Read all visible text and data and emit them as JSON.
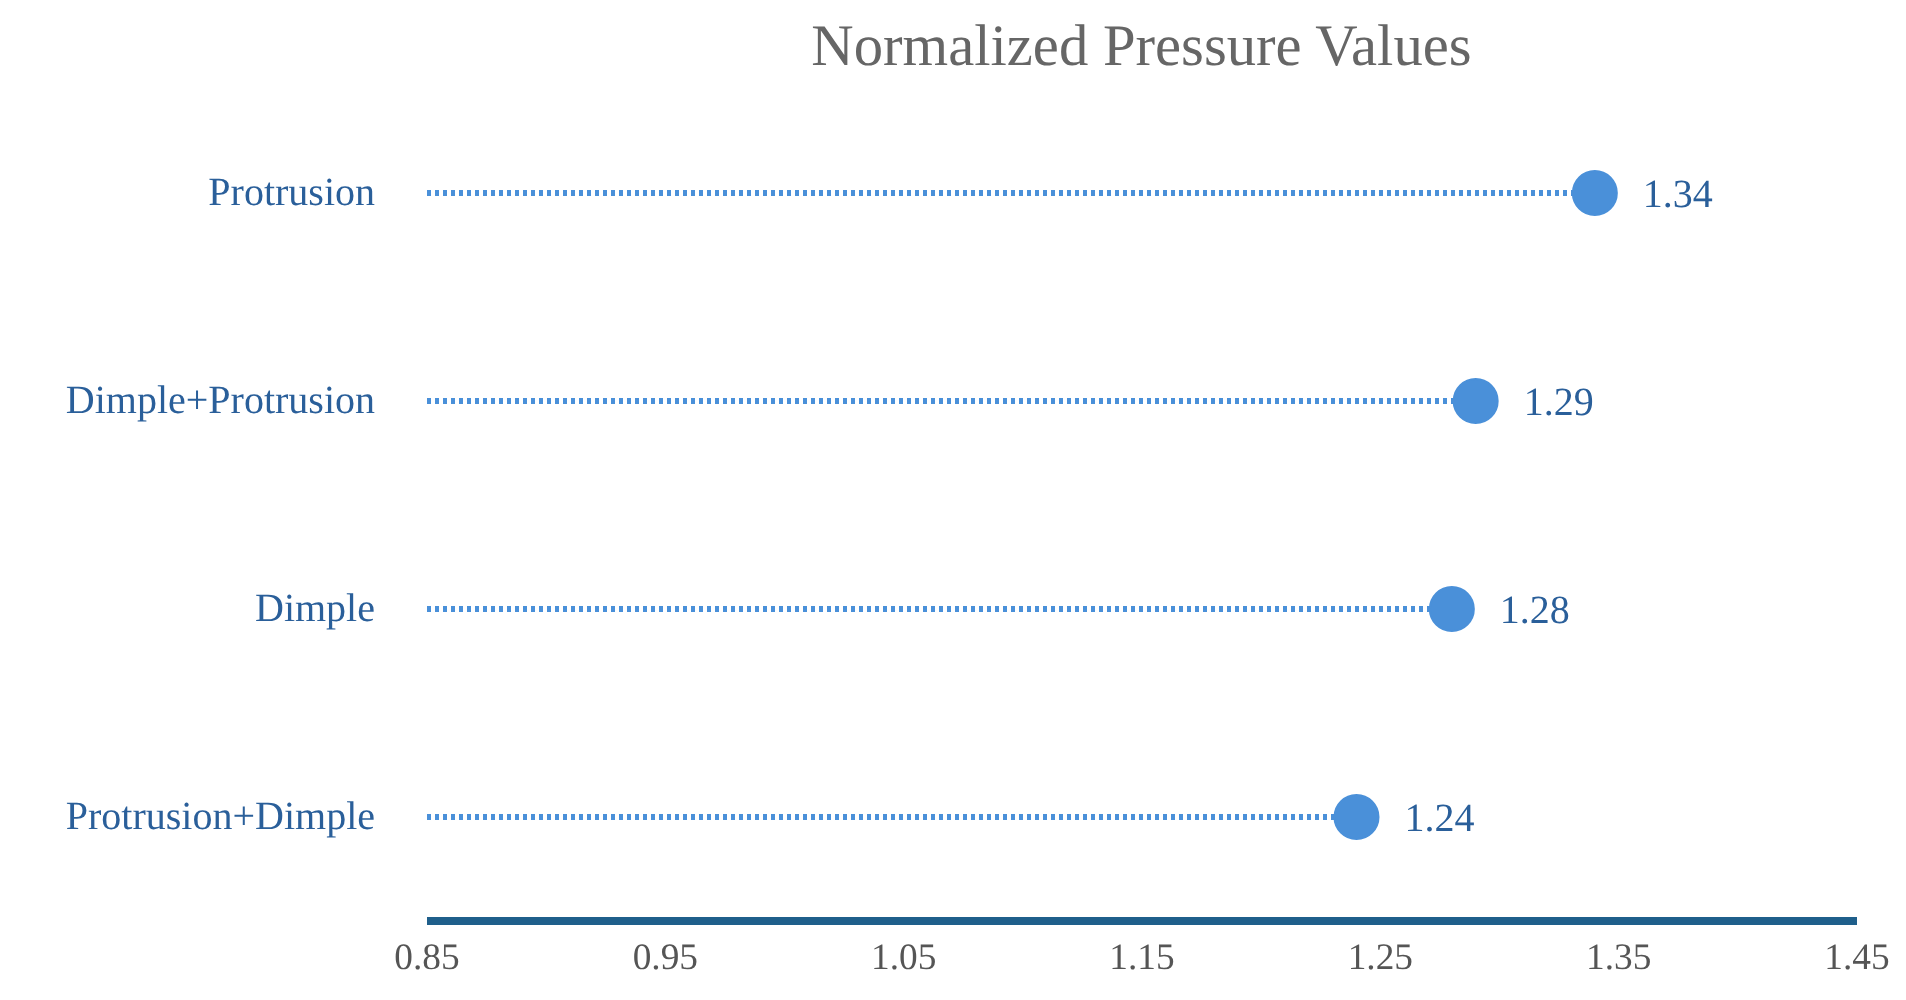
{
  "chart_data": {
    "type": "lollipop",
    "title": "Normalized Pressure Values",
    "orientation": "horizontal",
    "categories": [
      "Protrusion",
      "Dimple+Protrusion",
      "Dimple",
      "Protrusion+Dimple"
    ],
    "values": [
      1.34,
      1.29,
      1.28,
      1.24
    ],
    "color": "#4a90d9",
    "xlim": [
      0.85,
      1.45
    ],
    "xticks": [
      0.85,
      0.95,
      1.05,
      1.15,
      1.25,
      1.35,
      1.45
    ],
    "data_labels": true,
    "grid": false,
    "marker": "circle",
    "line_style": "dotted"
  }
}
